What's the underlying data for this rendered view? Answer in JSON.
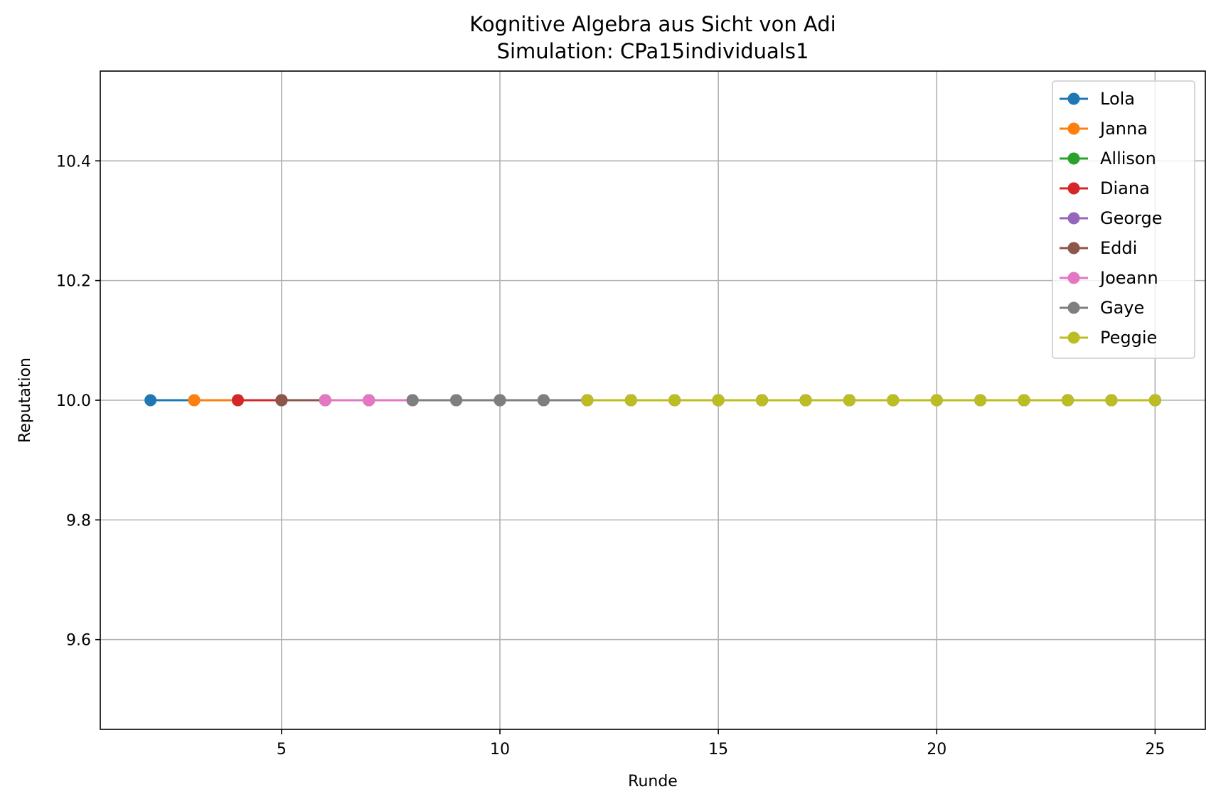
{
  "chart_data": {
    "type": "line",
    "title": "Kognitive Algebra aus Sicht von Adi",
    "subtitle": "Simulation: CPa15individuals1",
    "xlabel": "Runde",
    "ylabel": "Reputation",
    "xlim": [
      0.85,
      26.15
    ],
    "ylim": [
      9.45,
      10.55
    ],
    "xticks": [
      5,
      10,
      15,
      20,
      25
    ],
    "xtick_labels": [
      "5",
      "10",
      "15",
      "20",
      "25"
    ],
    "yticks": [
      9.6,
      9.8,
      10.0,
      10.2,
      10.4
    ],
    "ytick_labels": [
      "9.6",
      "9.8",
      "10.0",
      "10.2",
      "10.4"
    ],
    "grid": true,
    "legend_position": "top-right",
    "series": [
      {
        "name": "Lola",
        "color": "#1f77b4",
        "x": [
          2,
          3,
          4,
          5,
          6,
          7,
          8,
          9,
          10,
          11,
          12,
          13,
          14,
          15,
          16,
          17,
          18,
          19,
          20,
          21,
          22,
          23,
          24,
          25
        ],
        "y": [
          10.0,
          10.0,
          10.0,
          10.0,
          10.0,
          10.0,
          10.0,
          10.0,
          10.0,
          10.0,
          10.0,
          10.0,
          10.0,
          10.0,
          10.0,
          10.0,
          10.0,
          10.0,
          10.0,
          10.0,
          10.0,
          10.0,
          10.0,
          10.0
        ]
      },
      {
        "name": "Janna",
        "color": "#ff7f0e",
        "x": [
          3,
          4,
          5,
          6,
          7,
          8,
          9,
          10,
          11,
          12,
          13,
          14,
          15,
          16,
          17,
          18,
          19,
          20,
          21,
          22,
          23,
          24,
          25
        ],
        "y": [
          10.0,
          10.0,
          10.0,
          10.0,
          10.0,
          10.0,
          10.0,
          10.0,
          10.0,
          10.0,
          10.0,
          10.0,
          10.0,
          10.0,
          10.0,
          10.0,
          10.0,
          10.0,
          10.0,
          10.0,
          10.0,
          10.0,
          10.0
        ]
      },
      {
        "name": "Allison",
        "color": "#2ca02c",
        "x": [
          4,
          5,
          6,
          7,
          8,
          9,
          10,
          11,
          12,
          13,
          14,
          15,
          16,
          17,
          18,
          19,
          20,
          21,
          22,
          23,
          24,
          25
        ],
        "y": [
          10.0,
          10.0,
          10.0,
          10.0,
          10.0,
          10.0,
          10.0,
          10.0,
          10.0,
          10.0,
          10.0,
          10.0,
          10.0,
          10.0,
          10.0,
          10.0,
          10.0,
          10.0,
          10.0,
          10.0,
          10.0,
          10.0
        ]
      },
      {
        "name": "Diana",
        "color": "#d62728",
        "x": [
          4,
          5,
          6,
          7,
          8,
          9,
          10,
          11,
          12,
          13,
          14,
          15,
          16,
          17,
          18,
          19,
          20,
          21,
          22,
          23,
          24,
          25
        ],
        "y": [
          10.0,
          10.0,
          10.0,
          10.0,
          10.0,
          10.0,
          10.0,
          10.0,
          10.0,
          10.0,
          10.0,
          10.0,
          10.0,
          10.0,
          10.0,
          10.0,
          10.0,
          10.0,
          10.0,
          10.0,
          10.0,
          10.0
        ]
      },
      {
        "name": "George",
        "color": "#9467bd",
        "x": [
          5,
          6,
          7,
          8,
          9,
          10,
          11,
          12,
          13,
          14,
          15,
          16,
          17,
          18,
          19,
          20,
          21,
          22,
          23,
          24,
          25
        ],
        "y": [
          10.0,
          10.0,
          10.0,
          10.0,
          10.0,
          10.0,
          10.0,
          10.0,
          10.0,
          10.0,
          10.0,
          10.0,
          10.0,
          10.0,
          10.0,
          10.0,
          10.0,
          10.0,
          10.0,
          10.0,
          10.0
        ]
      },
      {
        "name": "Eddi",
        "color": "#8c564b",
        "x": [
          5,
          6,
          7,
          8,
          9,
          10,
          11,
          12,
          13,
          14,
          15,
          16,
          17,
          18,
          19,
          20,
          21,
          22,
          23,
          24,
          25
        ],
        "y": [
          10.0,
          10.0,
          10.0,
          10.0,
          10.0,
          10.0,
          10.0,
          10.0,
          10.0,
          10.0,
          10.0,
          10.0,
          10.0,
          10.0,
          10.0,
          10.0,
          10.0,
          10.0,
          10.0,
          10.0,
          10.0
        ]
      },
      {
        "name": "Joeann",
        "color": "#e377c2",
        "x": [
          6,
          7,
          8,
          9,
          10,
          11,
          12,
          13,
          14,
          15,
          16,
          17,
          18,
          19,
          20,
          21,
          22,
          23,
          24,
          25
        ],
        "y": [
          10.0,
          10.0,
          10.0,
          10.0,
          10.0,
          10.0,
          10.0,
          10.0,
          10.0,
          10.0,
          10.0,
          10.0,
          10.0,
          10.0,
          10.0,
          10.0,
          10.0,
          10.0,
          10.0,
          10.0
        ]
      },
      {
        "name": "Gaye",
        "color": "#7f7f7f",
        "x": [
          8,
          9,
          10,
          11,
          12,
          13,
          14,
          15,
          16,
          17,
          18,
          19,
          20,
          21,
          22,
          23,
          24,
          25
        ],
        "y": [
          10.0,
          10.0,
          10.0,
          10.0,
          10.0,
          10.0,
          10.0,
          10.0,
          10.0,
          10.0,
          10.0,
          10.0,
          10.0,
          10.0,
          10.0,
          10.0,
          10.0,
          10.0
        ]
      },
      {
        "name": "Peggie",
        "color": "#bcbd22",
        "x": [
          12,
          13,
          14,
          15,
          16,
          17,
          18,
          19,
          20,
          21,
          22,
          23,
          24,
          25
        ],
        "y": [
          10.0,
          10.0,
          10.0,
          10.0,
          10.0,
          10.0,
          10.0,
          10.0,
          10.0,
          10.0,
          10.0,
          10.0,
          10.0,
          10.0
        ]
      }
    ]
  }
}
